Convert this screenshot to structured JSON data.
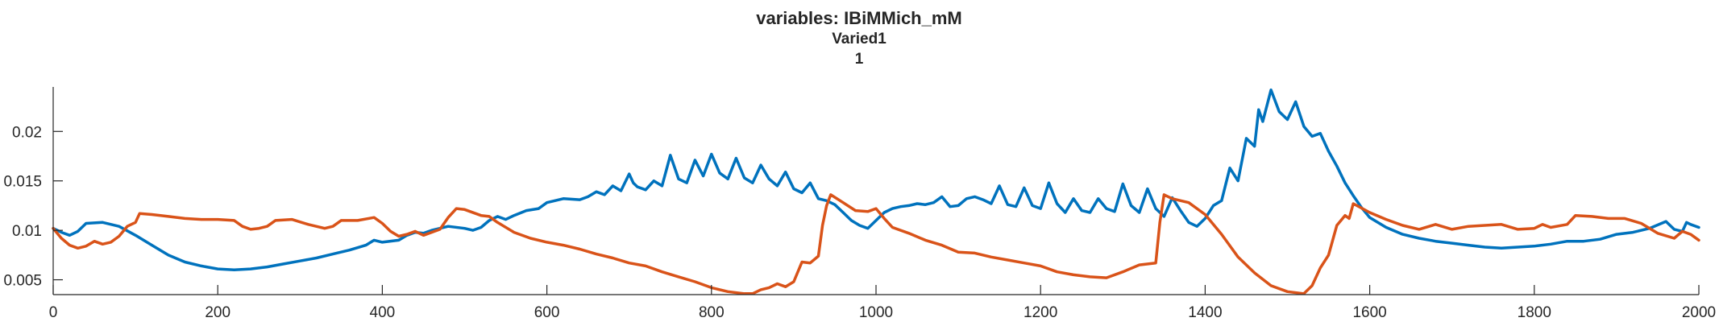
{
  "chart_data": {
    "type": "line",
    "title": "variables: IBiMMich_mM",
    "subtitle": [
      "Varied1",
      "1"
    ],
    "xlabel": "",
    "ylabel": "",
    "xlim": [
      0,
      2000
    ],
    "ylim": [
      0.0035,
      0.0245
    ],
    "xticks": [
      0,
      200,
      400,
      600,
      800,
      1000,
      1200,
      1400,
      1600,
      1800,
      2000
    ],
    "xtick_labels": [
      "0",
      "200",
      "400",
      "600",
      "800",
      "1000",
      "1200",
      "1400",
      "1600",
      "1800",
      "2000"
    ],
    "yticks": [
      0.005,
      0.01,
      0.015,
      0.02
    ],
    "ytick_labels": [
      "0.005",
      "0.01",
      "0.015",
      "0.02"
    ],
    "grid": false,
    "legend": "none",
    "colors": {
      "series_1": "#0072BD",
      "series_2": "#D95319",
      "axis": "#262626"
    },
    "series": [
      {
        "values": [
          [
            0,
            0.0102
          ],
          [
            10,
            0.0098
          ],
          [
            20,
            0.0095
          ],
          [
            30,
            0.0099
          ],
          [
            40,
            0.0107
          ],
          [
            60,
            0.0108
          ],
          [
            80,
            0.0104
          ],
          [
            100,
            0.0095
          ],
          [
            120,
            0.0085
          ],
          [
            140,
            0.0075
          ],
          [
            160,
            0.0068
          ],
          [
            180,
            0.0064
          ],
          [
            200,
            0.0061
          ],
          [
            220,
            0.006
          ],
          [
            240,
            0.0061
          ],
          [
            260,
            0.0063
          ],
          [
            280,
            0.0066
          ],
          [
            300,
            0.0069
          ],
          [
            320,
            0.0072
          ],
          [
            340,
            0.0076
          ],
          [
            360,
            0.008
          ],
          [
            380,
            0.0085
          ],
          [
            390,
            0.009
          ],
          [
            400,
            0.0088
          ],
          [
            420,
            0.009
          ],
          [
            430,
            0.0095
          ],
          [
            440,
            0.0098
          ],
          [
            450,
            0.0097
          ],
          [
            460,
            0.01
          ],
          [
            480,
            0.0104
          ],
          [
            500,
            0.0102
          ],
          [
            510,
            0.01
          ],
          [
            520,
            0.0103
          ],
          [
            530,
            0.011
          ],
          [
            540,
            0.0114
          ],
          [
            550,
            0.0111
          ],
          [
            560,
            0.0115
          ],
          [
            575,
            0.012
          ],
          [
            590,
            0.0122
          ],
          [
            600,
            0.0128
          ],
          [
            620,
            0.0132
          ],
          [
            640,
            0.0131
          ],
          [
            650,
            0.0134
          ],
          [
            660,
            0.0139
          ],
          [
            670,
            0.0136
          ],
          [
            680,
            0.0145
          ],
          [
            690,
            0.014
          ],
          [
            700,
            0.0157
          ],
          [
            705,
            0.0148
          ],
          [
            710,
            0.0144
          ],
          [
            720,
            0.0141
          ],
          [
            730,
            0.015
          ],
          [
            740,
            0.0145
          ],
          [
            750,
            0.0176
          ],
          [
            760,
            0.0152
          ],
          [
            770,
            0.0148
          ],
          [
            780,
            0.0171
          ],
          [
            790,
            0.0155
          ],
          [
            800,
            0.0177
          ],
          [
            810,
            0.0158
          ],
          [
            820,
            0.0152
          ],
          [
            830,
            0.0173
          ],
          [
            840,
            0.0153
          ],
          [
            850,
            0.0148
          ],
          [
            860,
            0.0166
          ],
          [
            870,
            0.0152
          ],
          [
            880,
            0.0145
          ],
          [
            890,
            0.0159
          ],
          [
            900,
            0.0142
          ],
          [
            910,
            0.0138
          ],
          [
            920,
            0.0148
          ],
          [
            930,
            0.0132
          ],
          [
            940,
            0.013
          ],
          [
            950,
            0.0126
          ],
          [
            960,
            0.0118
          ],
          [
            970,
            0.011
          ],
          [
            980,
            0.0105
          ],
          [
            990,
            0.0102
          ],
          [
            1000,
            0.011
          ],
          [
            1010,
            0.0118
          ],
          [
            1020,
            0.0122
          ],
          [
            1030,
            0.0124
          ],
          [
            1040,
            0.0125
          ],
          [
            1050,
            0.0127
          ],
          [
            1060,
            0.0126
          ],
          [
            1070,
            0.0128
          ],
          [
            1080,
            0.0134
          ],
          [
            1090,
            0.0124
          ],
          [
            1100,
            0.0125
          ],
          [
            1110,
            0.0132
          ],
          [
            1120,
            0.0134
          ],
          [
            1130,
            0.0131
          ],
          [
            1140,
            0.0127
          ],
          [
            1150,
            0.0145
          ],
          [
            1160,
            0.0126
          ],
          [
            1170,
            0.0124
          ],
          [
            1180,
            0.0143
          ],
          [
            1190,
            0.0125
          ],
          [
            1200,
            0.0122
          ],
          [
            1210,
            0.0148
          ],
          [
            1220,
            0.0127
          ],
          [
            1230,
            0.0118
          ],
          [
            1240,
            0.0132
          ],
          [
            1250,
            0.012
          ],
          [
            1260,
            0.0118
          ],
          [
            1270,
            0.0132
          ],
          [
            1280,
            0.0122
          ],
          [
            1290,
            0.0119
          ],
          [
            1300,
            0.0147
          ],
          [
            1310,
            0.0125
          ],
          [
            1320,
            0.0118
          ],
          [
            1330,
            0.0142
          ],
          [
            1340,
            0.0122
          ],
          [
            1350,
            0.0114
          ],
          [
            1360,
            0.0133
          ],
          [
            1370,
            0.012
          ],
          [
            1380,
            0.0108
          ],
          [
            1390,
            0.0104
          ],
          [
            1400,
            0.0112
          ],
          [
            1410,
            0.0125
          ],
          [
            1420,
            0.013
          ],
          [
            1430,
            0.0163
          ],
          [
            1440,
            0.015
          ],
          [
            1450,
            0.0193
          ],
          [
            1460,
            0.0185
          ],
          [
            1465,
            0.0222
          ],
          [
            1470,
            0.021
          ],
          [
            1480,
            0.0242
          ],
          [
            1490,
            0.022
          ],
          [
            1500,
            0.0212
          ],
          [
            1510,
            0.023
          ],
          [
            1520,
            0.0205
          ],
          [
            1530,
            0.0195
          ],
          [
            1540,
            0.0198
          ],
          [
            1550,
            0.018
          ],
          [
            1560,
            0.0165
          ],
          [
            1570,
            0.0148
          ],
          [
            1580,
            0.0135
          ],
          [
            1590,
            0.0123
          ],
          [
            1600,
            0.0113
          ],
          [
            1620,
            0.0103
          ],
          [
            1640,
            0.0096
          ],
          [
            1660,
            0.0092
          ],
          [
            1680,
            0.0089
          ],
          [
            1700,
            0.0087
          ],
          [
            1720,
            0.0085
          ],
          [
            1740,
            0.0083
          ],
          [
            1760,
            0.0082
          ],
          [
            1780,
            0.0083
          ],
          [
            1800,
            0.0084
          ],
          [
            1820,
            0.0086
          ],
          [
            1840,
            0.0089
          ],
          [
            1860,
            0.0089
          ],
          [
            1880,
            0.0091
          ],
          [
            1900,
            0.0096
          ],
          [
            1920,
            0.0098
          ],
          [
            1940,
            0.0102
          ],
          [
            1960,
            0.0109
          ],
          [
            1970,
            0.0101
          ],
          [
            1980,
            0.0099
          ],
          [
            1985,
            0.0108
          ],
          [
            1990,
            0.0106
          ],
          [
            2000,
            0.0103
          ]
        ]
      },
      {
        "values": [
          [
            0,
            0.0102
          ],
          [
            10,
            0.0092
          ],
          [
            20,
            0.0085
          ],
          [
            30,
            0.0082
          ],
          [
            40,
            0.0084
          ],
          [
            50,
            0.0089
          ],
          [
            60,
            0.0086
          ],
          [
            70,
            0.0088
          ],
          [
            80,
            0.0094
          ],
          [
            90,
            0.0104
          ],
          [
            100,
            0.0108
          ],
          [
            105,
            0.0117
          ],
          [
            120,
            0.0116
          ],
          [
            140,
            0.0114
          ],
          [
            160,
            0.0112
          ],
          [
            180,
            0.0111
          ],
          [
            200,
            0.0111
          ],
          [
            220,
            0.011
          ],
          [
            230,
            0.0104
          ],
          [
            240,
            0.0101
          ],
          [
            250,
            0.0102
          ],
          [
            260,
            0.0104
          ],
          [
            270,
            0.011
          ],
          [
            290,
            0.0111
          ],
          [
            310,
            0.0106
          ],
          [
            330,
            0.0102
          ],
          [
            340,
            0.0104
          ],
          [
            350,
            0.011
          ],
          [
            370,
            0.011
          ],
          [
            390,
            0.0113
          ],
          [
            400,
            0.0107
          ],
          [
            410,
            0.0099
          ],
          [
            420,
            0.0094
          ],
          [
            430,
            0.0096
          ],
          [
            440,
            0.0099
          ],
          [
            450,
            0.0095
          ],
          [
            470,
            0.0101
          ],
          [
            480,
            0.0113
          ],
          [
            490,
            0.0122
          ],
          [
            500,
            0.0121
          ],
          [
            520,
            0.0115
          ],
          [
            530,
            0.0114
          ],
          [
            540,
            0.0108
          ],
          [
            560,
            0.0098
          ],
          [
            580,
            0.0092
          ],
          [
            600,
            0.0088
          ],
          [
            620,
            0.0085
          ],
          [
            640,
            0.0081
          ],
          [
            660,
            0.0076
          ],
          [
            680,
            0.0072
          ],
          [
            700,
            0.0067
          ],
          [
            720,
            0.0064
          ],
          [
            740,
            0.0058
          ],
          [
            760,
            0.0053
          ],
          [
            780,
            0.0048
          ],
          [
            800,
            0.0042
          ],
          [
            820,
            0.0038
          ],
          [
            840,
            0.0036
          ],
          [
            850,
            0.0036
          ],
          [
            860,
            0.004
          ],
          [
            870,
            0.0042
          ],
          [
            880,
            0.0046
          ],
          [
            890,
            0.0043
          ],
          [
            900,
            0.0048
          ],
          [
            910,
            0.0068
          ],
          [
            920,
            0.0067
          ],
          [
            930,
            0.0074
          ],
          [
            935,
            0.0105
          ],
          [
            940,
            0.0125
          ],
          [
            945,
            0.0136
          ],
          [
            960,
            0.0128
          ],
          [
            975,
            0.012
          ],
          [
            990,
            0.0119
          ],
          [
            1000,
            0.0122
          ],
          [
            1010,
            0.0112
          ],
          [
            1020,
            0.0103
          ],
          [
            1040,
            0.0097
          ],
          [
            1060,
            0.009
          ],
          [
            1080,
            0.0085
          ],
          [
            1100,
            0.0078
          ],
          [
            1120,
            0.0077
          ],
          [
            1140,
            0.0073
          ],
          [
            1160,
            0.007
          ],
          [
            1180,
            0.0067
          ],
          [
            1200,
            0.0064
          ],
          [
            1220,
            0.0058
          ],
          [
            1240,
            0.0055
          ],
          [
            1260,
            0.0053
          ],
          [
            1280,
            0.0052
          ],
          [
            1300,
            0.0058
          ],
          [
            1320,
            0.0065
          ],
          [
            1340,
            0.0067
          ],
          [
            1345,
            0.0108
          ],
          [
            1350,
            0.0136
          ],
          [
            1360,
            0.0132
          ],
          [
            1380,
            0.0128
          ],
          [
            1400,
            0.0116
          ],
          [
            1420,
            0.0096
          ],
          [
            1440,
            0.0073
          ],
          [
            1460,
            0.0057
          ],
          [
            1480,
            0.0044
          ],
          [
            1500,
            0.0038
          ],
          [
            1520,
            0.0036
          ],
          [
            1530,
            0.0044
          ],
          [
            1540,
            0.0062
          ],
          [
            1550,
            0.0075
          ],
          [
            1560,
            0.0105
          ],
          [
            1570,
            0.0115
          ],
          [
            1575,
            0.0112
          ],
          [
            1580,
            0.0127
          ],
          [
            1600,
            0.0118
          ],
          [
            1620,
            0.0111
          ],
          [
            1640,
            0.0105
          ],
          [
            1660,
            0.0101
          ],
          [
            1680,
            0.0106
          ],
          [
            1700,
            0.0101
          ],
          [
            1720,
            0.0104
          ],
          [
            1740,
            0.0105
          ],
          [
            1760,
            0.0106
          ],
          [
            1780,
            0.0101
          ],
          [
            1800,
            0.0102
          ],
          [
            1810,
            0.0106
          ],
          [
            1820,
            0.0103
          ],
          [
            1840,
            0.0106
          ],
          [
            1850,
            0.0115
          ],
          [
            1870,
            0.0114
          ],
          [
            1890,
            0.0112
          ],
          [
            1910,
            0.0112
          ],
          [
            1930,
            0.0107
          ],
          [
            1950,
            0.0097
          ],
          [
            1970,
            0.0092
          ],
          [
            1980,
            0.0099
          ],
          [
            1990,
            0.0096
          ],
          [
            2000,
            0.009
          ]
        ]
      }
    ]
  }
}
